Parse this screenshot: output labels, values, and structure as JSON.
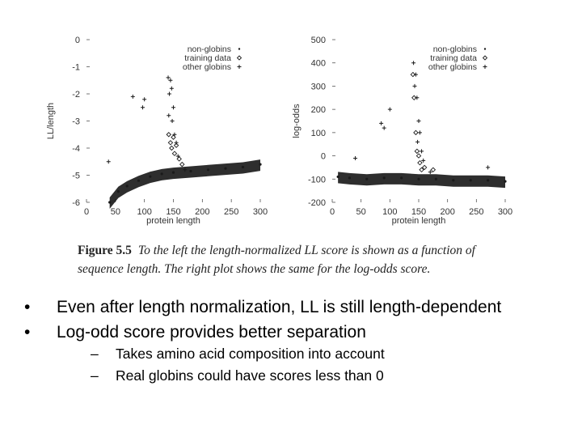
{
  "chart_data": [
    {
      "type": "scatter",
      "xlabel": "protein length",
      "ylabel": "LL/length",
      "xlim": [
        0,
        300
      ],
      "ylim": [
        -6,
        0
      ],
      "x_ticks": [
        "0",
        "50",
        "100",
        "150",
        "200",
        "250",
        "300"
      ],
      "y_ticks": [
        "0",
        "-1",
        "-2",
        "-3",
        "-4",
        "-5",
        "-6"
      ],
      "legend_position": "top-right",
      "series": [
        {
          "name": "non-globins",
          "marker": "dot",
          "points": [
            [
              40,
              -6
            ],
            [
              55,
              -5.6
            ],
            [
              70,
              -5.4
            ],
            [
              90,
              -5.2
            ],
            [
              110,
              -5.05
            ],
            [
              130,
              -4.95
            ],
            [
              150,
              -4.9
            ],
            [
              180,
              -4.85
            ],
            [
              210,
              -4.8
            ],
            [
              240,
              -4.75
            ],
            [
              270,
              -4.7
            ],
            [
              300,
              -4.6
            ]
          ]
        },
        {
          "name": "training data",
          "marker": "diamond",
          "points": [
            [
              142,
              -3.5
            ],
            [
              145,
              -3.8
            ],
            [
              147,
              -4.0
            ],
            [
              150,
              -3.6
            ],
            [
              152,
              -4.2
            ],
            [
              155,
              -3.9
            ],
            [
              160,
              -4.4
            ],
            [
              165,
              -4.6
            ]
          ]
        },
        {
          "name": "other globins",
          "marker": "plus",
          "points": [
            [
              38,
              -4.5
            ],
            [
              80,
              -2.1
            ],
            [
              97,
              -2.5
            ],
            [
              100,
              -2.2
            ],
            [
              141,
              -1.4
            ],
            [
              143,
              -2.0
            ],
            [
              145,
              -1.5
            ],
            [
              147,
              -1.8
            ],
            [
              150,
              -2.5
            ],
            [
              152,
              -3.5
            ],
            [
              148,
              -3.0
            ],
            [
              155,
              -3.8
            ],
            [
              158,
              -4.3
            ],
            [
              170,
              -4.8
            ],
            [
              142,
              -2.8
            ]
          ]
        }
      ]
    },
    {
      "type": "scatter",
      "xlabel": "protein length",
      "ylabel": "log-odds",
      "xlim": [
        0,
        300
      ],
      "ylim": [
        -200,
        500
      ],
      "x_ticks": [
        "0",
        "50",
        "100",
        "150",
        "200",
        "250",
        "300"
      ],
      "y_ticks": [
        "500",
        "400",
        "300",
        "200",
        "100",
        "0",
        "-100",
        "-200"
      ],
      "legend_position": "top-right",
      "series": [
        {
          "name": "non-globins",
          "marker": "dot",
          "points": [
            [
              10,
              -90
            ],
            [
              30,
              -95
            ],
            [
              60,
              -100
            ],
            [
              90,
              -95
            ],
            [
              120,
              -95
            ],
            [
              150,
              -100
            ],
            [
              180,
              -100
            ],
            [
              210,
              -105
            ],
            [
              240,
              -105
            ],
            [
              270,
              -105
            ],
            [
              300,
              -110
            ]
          ]
        },
        {
          "name": "training data",
          "marker": "diamond",
          "points": [
            [
              140,
              350
            ],
            [
              142,
              250
            ],
            [
              145,
              100
            ],
            [
              147,
              20
            ],
            [
              150,
              0
            ],
            [
              152,
              -30
            ],
            [
              155,
              -60
            ],
            [
              160,
              -50
            ],
            [
              175,
              -60
            ]
          ]
        },
        {
          "name": "other globins",
          "marker": "plus",
          "points": [
            [
              40,
              -10
            ],
            [
              85,
              140
            ],
            [
              90,
              120
            ],
            [
              100,
              200
            ],
            [
              141,
              400
            ],
            [
              143,
              300
            ],
            [
              145,
              350
            ],
            [
              147,
              250
            ],
            [
              150,
              150
            ],
            [
              152,
              100
            ],
            [
              148,
              60
            ],
            [
              155,
              20
            ],
            [
              158,
              -20
            ],
            [
              170,
              -70
            ],
            [
              270,
              -50
            ]
          ]
        }
      ]
    }
  ],
  "caption": {
    "label": "Figure 5.5",
    "text": "To the left the length-normalized LL score is shown as a function of sequence length. The right plot shows the same for the log-odds score."
  },
  "bullets": [
    {
      "symbol": "•",
      "text": "Even after length normalization, LL is still length-dependent",
      "subitems": []
    },
    {
      "symbol": "•",
      "text": "Log-odd score provides better separation",
      "subitems": [
        {
          "symbol": "–",
          "text": "Takes amino acid composition into account"
        },
        {
          "symbol": "–",
          "text": "Real globins could have scores less than 0"
        }
      ]
    }
  ],
  "colors": {
    "ink": "#1a1a1a",
    "axis": "#333333",
    "background": "#ffffff"
  }
}
